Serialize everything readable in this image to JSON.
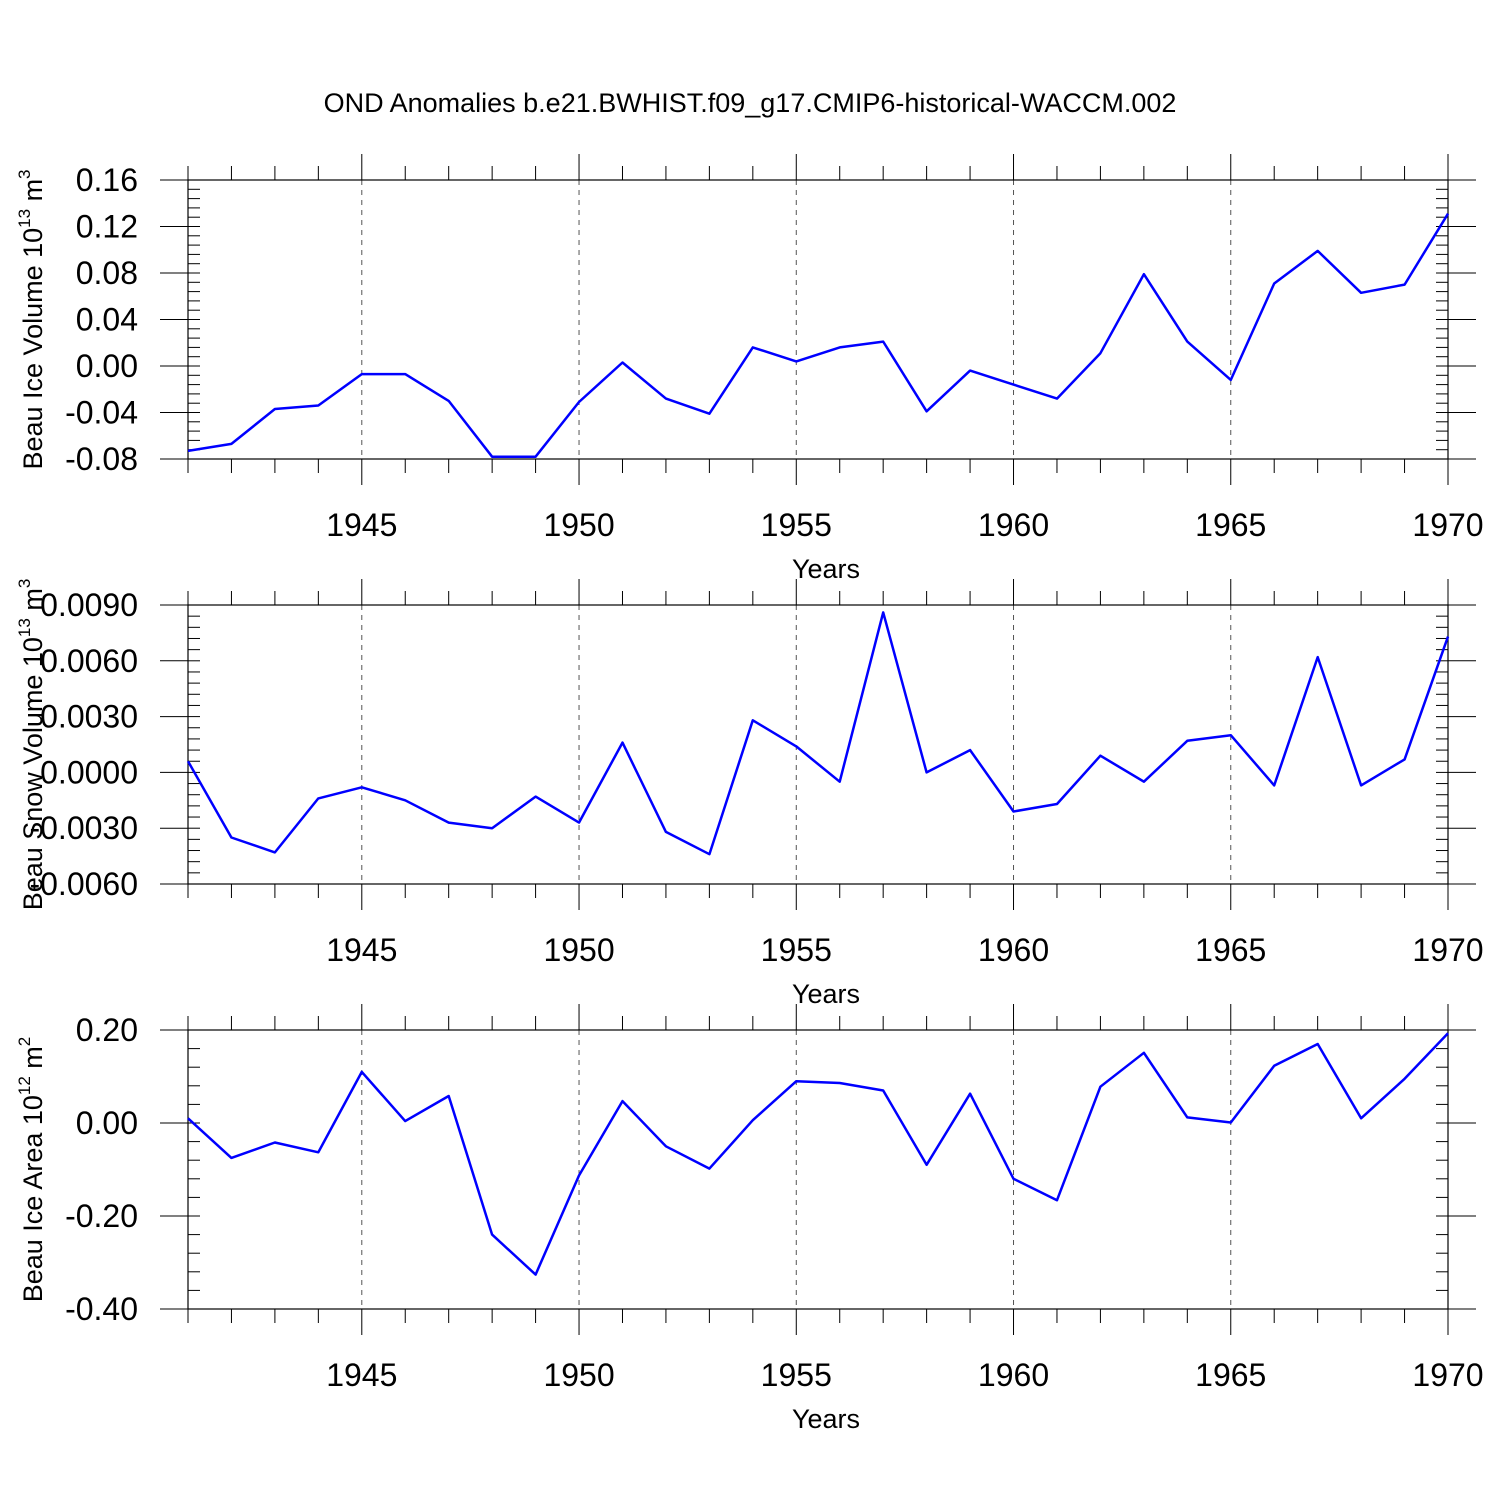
{
  "title": "OND Anomalies b.e21.BWHIST.f09_g17.CMIP6-historical-WACCM.002",
  "colors": {
    "series": "#0000ff",
    "axis": "#000000",
    "grid": "#555555"
  },
  "chart_data": [
    {
      "type": "line",
      "title": "",
      "xlabel": "Years",
      "ylabel": "Beau Ice Volume 10",
      "ylabel_unit": "m",
      "ylabel_exp1": "13",
      "ylabel_exp2": "3",
      "xlim": [
        1941,
        1970
      ],
      "ylim": [
        -0.08,
        0.16
      ],
      "xticks": [
        "1945",
        "1950",
        "1955",
        "1960",
        "1965",
        "1970"
      ],
      "yticks": [
        "0.16",
        "0.12",
        "0.08",
        "0.04",
        "0.00",
        "-0.04",
        "-0.08"
      ],
      "x": [
        1941,
        1942,
        1943,
        1944,
        1945,
        1946,
        1947,
        1948,
        1949,
        1950,
        1951,
        1952,
        1953,
        1954,
        1955,
        1956,
        1957,
        1958,
        1959,
        1960,
        1961,
        1962,
        1963,
        1964,
        1965,
        1966,
        1967,
        1968,
        1969,
        1970
      ],
      "series": [
        {
          "name": "Beau Ice Volume",
          "values": [
            -0.073,
            -0.067,
            -0.037,
            -0.034,
            -0.007,
            -0.007,
            -0.03,
            -0.078,
            -0.078,
            -0.031,
            0.003,
            -0.028,
            -0.041,
            0.016,
            0.004,
            0.016,
            0.021,
            -0.039,
            -0.004,
            -0.016,
            -0.028,
            0.011,
            0.079,
            0.021,
            -0.012,
            0.071,
            0.099,
            0.063,
            0.07,
            0.131
          ]
        }
      ]
    },
    {
      "type": "line",
      "title": "",
      "xlabel": "Years",
      "ylabel": "Beau Snow Volume 10",
      "ylabel_unit": "m",
      "ylabel_exp1": "13",
      "ylabel_exp2": "3",
      "xlim": [
        1941,
        1970
      ],
      "ylim": [
        -0.006,
        0.009
      ],
      "xticks": [
        "1945",
        "1950",
        "1955",
        "1960",
        "1965",
        "1970"
      ],
      "yticks": [
        "0.0090",
        "0.0060",
        "0.0030",
        "0.0000",
        "-0.0030",
        "-0.0060"
      ],
      "x": [
        1941,
        1942,
        1943,
        1944,
        1945,
        1946,
        1947,
        1948,
        1949,
        1950,
        1951,
        1952,
        1953,
        1954,
        1955,
        1956,
        1957,
        1958,
        1959,
        1960,
        1961,
        1962,
        1963,
        1964,
        1965,
        1966,
        1967,
        1968,
        1969,
        1970
      ],
      "series": [
        {
          "name": "Beau Snow Volume",
          "values": [
            0.0006,
            -0.0035,
            -0.0043,
            -0.0014,
            -0.0008,
            -0.0015,
            -0.0027,
            -0.003,
            -0.0013,
            -0.0027,
            0.0016,
            -0.0032,
            -0.0044,
            0.0028,
            0.0014,
            -0.0005,
            0.0086,
            0.0,
            0.0012,
            -0.0021,
            -0.0017,
            0.0009,
            -0.0005,
            0.0017,
            0.002,
            -0.0007,
            0.0062,
            -0.0007,
            0.0007,
            0.0073
          ]
        }
      ]
    },
    {
      "type": "line",
      "title": "",
      "xlabel": "Years",
      "ylabel": "Beau Ice Area 10",
      "ylabel_unit": "m",
      "ylabel_exp1": "12",
      "ylabel_exp2": "2",
      "xlim": [
        1941,
        1970
      ],
      "ylim": [
        -0.4,
        0.2
      ],
      "xticks": [
        "1945",
        "1950",
        "1955",
        "1960",
        "1965",
        "1970"
      ],
      "yticks": [
        "0.20",
        "0.00",
        "-0.20",
        "-0.40"
      ],
      "x": [
        1941,
        1942,
        1943,
        1944,
        1945,
        1946,
        1947,
        1948,
        1949,
        1950,
        1951,
        1952,
        1953,
        1954,
        1955,
        1956,
        1957,
        1958,
        1959,
        1960,
        1961,
        1962,
        1963,
        1964,
        1965,
        1966,
        1967,
        1968,
        1969,
        1970
      ],
      "series": [
        {
          "name": "Beau Ice Area",
          "values": [
            0.01,
            -0.075,
            -0.042,
            -0.063,
            0.11,
            0.004,
            0.058,
            -0.24,
            -0.326,
            -0.113,
            0.047,
            -0.05,
            -0.098,
            0.006,
            0.09,
            0.086,
            0.07,
            -0.09,
            0.063,
            -0.12,
            -0.166,
            0.078,
            0.151,
            0.012,
            0.001,
            0.123,
            0.17,
            0.01,
            0.095,
            0.193
          ]
        }
      ]
    }
  ]
}
